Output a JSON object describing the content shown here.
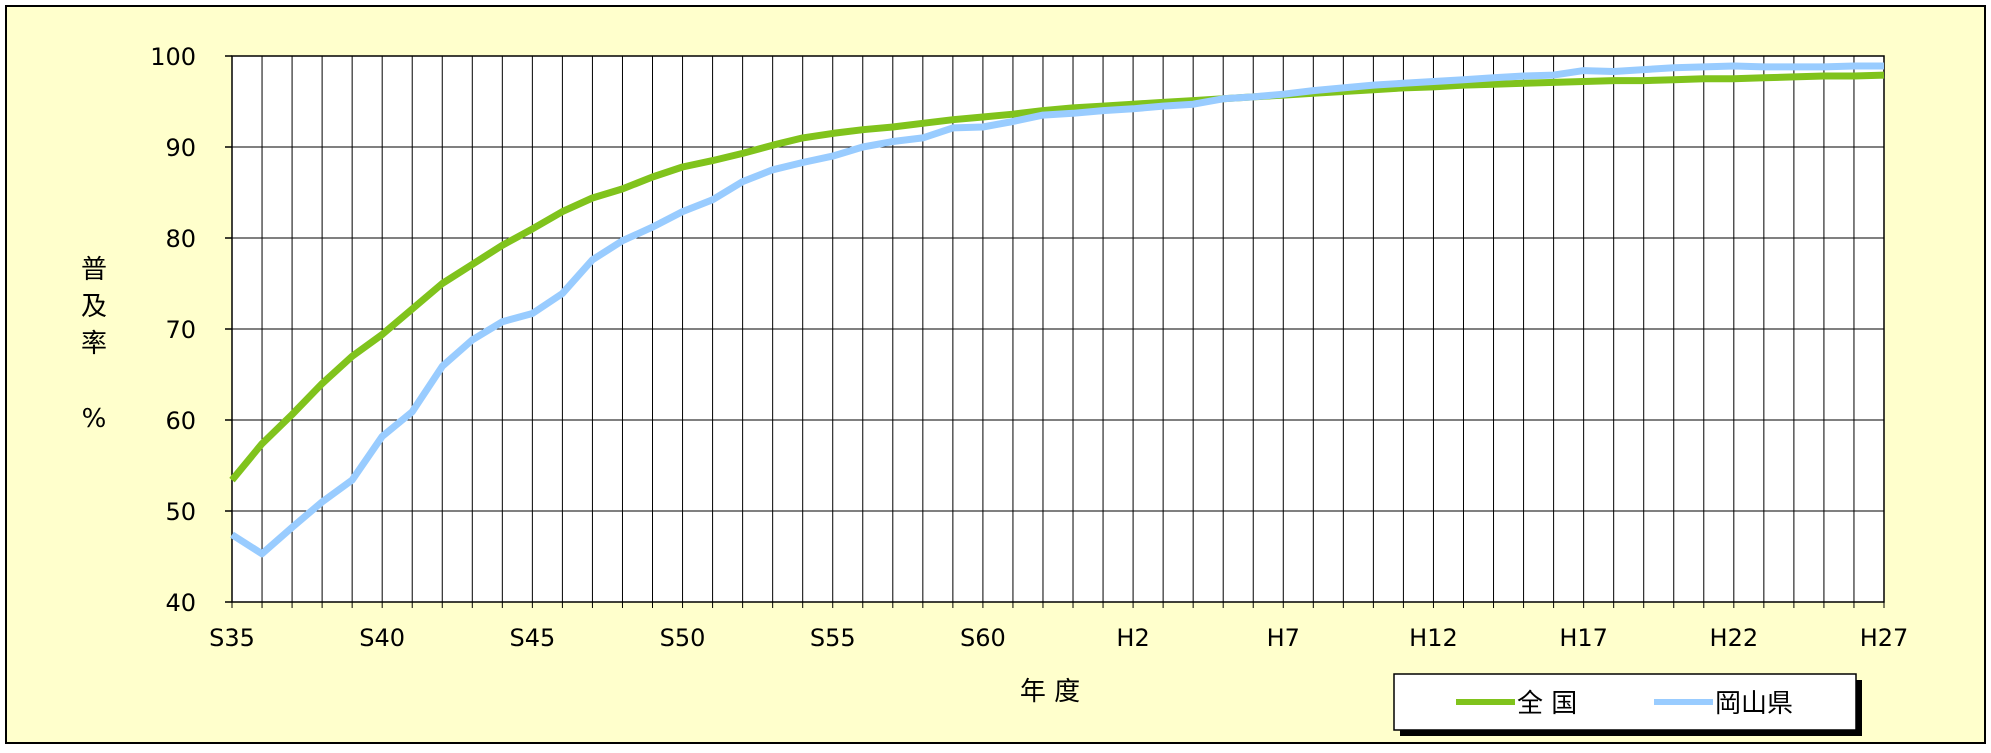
{
  "chart_data": {
    "type": "line",
    "title": "",
    "xlabel": "年 度",
    "ylabel": [
      "普",
      "及",
      "率",
      "%"
    ],
    "ylim": [
      40,
      100
    ],
    "yticks": [
      40,
      50,
      60,
      70,
      80,
      90,
      100
    ],
    "grid": true,
    "legend_position": "bottom-right",
    "background_color": "#ffffcc",
    "plot_background_color": "#ffffff",
    "x": [
      "S35",
      "S36",
      "S37",
      "S38",
      "S39",
      "S40",
      "S41",
      "S42",
      "S43",
      "S44",
      "S45",
      "S46",
      "S47",
      "S48",
      "S49",
      "S50",
      "S51",
      "S52",
      "S53",
      "S54",
      "S55",
      "S56",
      "S57",
      "S58",
      "S59",
      "S60",
      "S61",
      "S62",
      "S63",
      "H1",
      "H2",
      "H3",
      "H4",
      "H5",
      "H6",
      "H7",
      "H8",
      "H9",
      "H10",
      "H11",
      "H12",
      "H13",
      "H14",
      "H15",
      "H16",
      "H17",
      "H18",
      "H19",
      "H20",
      "H21",
      "H22",
      "H23",
      "H24",
      "H25",
      "H26",
      "H27"
    ],
    "xtick_labels": [
      "S35",
      "S40",
      "S45",
      "S50",
      "S55",
      "S60",
      "H2",
      "H7",
      "H12",
      "H17",
      "H22",
      "H27"
    ],
    "series": [
      {
        "name": "全 国",
        "color": "#80c31c",
        "values": [
          53.4,
          57.4,
          60.6,
          64.0,
          67.0,
          69.4,
          72.2,
          75.0,
          77.1,
          79.2,
          81.0,
          82.9,
          84.4,
          85.4,
          86.7,
          87.8,
          88.5,
          89.3,
          90.2,
          91.0,
          91.5,
          91.9,
          92.2,
          92.6,
          93.0,
          93.3,
          93.6,
          94.0,
          94.3,
          94.5,
          94.7,
          94.9,
          95.1,
          95.3,
          95.5,
          95.7,
          95.9,
          96.1,
          96.3,
          96.5,
          96.6,
          96.8,
          96.9,
          97.0,
          97.1,
          97.2,
          97.3,
          97.3,
          97.4,
          97.5,
          97.5,
          97.6,
          97.7,
          97.8,
          97.8,
          97.9
        ]
      },
      {
        "name": "岡山県",
        "color": "#99ccff",
        "values": [
          47.4,
          45.3,
          48.2,
          51.0,
          53.4,
          58.2,
          60.9,
          65.9,
          68.8,
          70.8,
          71.7,
          73.9,
          77.6,
          79.7,
          81.2,
          82.9,
          84.2,
          86.2,
          87.5,
          88.3,
          89.0,
          90.0,
          90.6,
          91.0,
          92.1,
          92.2,
          92.8,
          93.5,
          93.7,
          94.0,
          94.2,
          94.5,
          94.7,
          95.3,
          95.5,
          95.8,
          96.2,
          96.5,
          96.8,
          97.0,
          97.2,
          97.4,
          97.6,
          97.8,
          97.9,
          98.4,
          98.3,
          98.5,
          98.7,
          98.8,
          98.9,
          98.8,
          98.8,
          98.8,
          98.9,
          98.9
        ]
      }
    ]
  }
}
